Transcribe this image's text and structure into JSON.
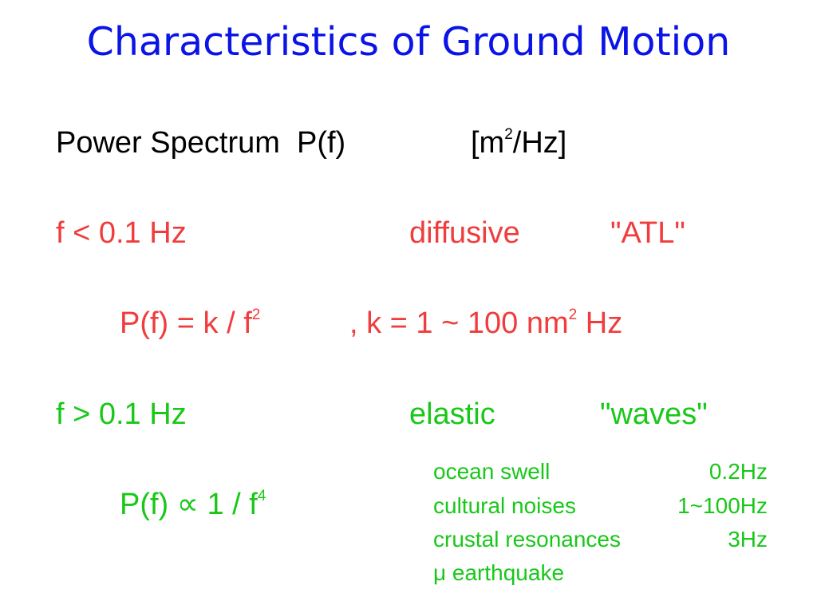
{
  "title": "Characteristics of Ground Motion",
  "header": {
    "label": "Power Spectrum  P(f)",
    "unit": "[m",
    "unit_sup": "2",
    "unit_end": "/Hz]"
  },
  "low": {
    "condition": "f < 0.1 Hz",
    "regime": "diffusive",
    "name": "\"ATL\"",
    "formula": "P(f) = k / f",
    "formula_sup": "2",
    "constant": ", k = 1 ~ 100 nm",
    "constant_sup": "2",
    "constant_unit": " Hz"
  },
  "high": {
    "condition": "f > 0.1 Hz",
    "regime": "elastic",
    "name": "\"waves\"",
    "formula": "P(f) ∝ 1 / f",
    "formula_sup": "4",
    "sources": [
      [
        "ocean swell",
        "0.2Hz"
      ],
      [
        "cultural noises",
        "1~100Hz"
      ],
      [
        "crustal resonances",
        "3Hz"
      ],
      [
        "μ earthquake"
      ]
    ]
  }
}
